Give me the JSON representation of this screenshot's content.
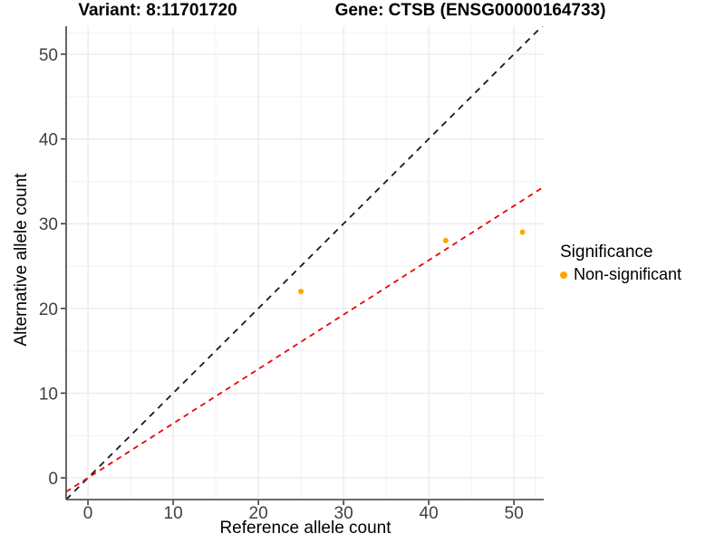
{
  "header": {
    "variant_title": "Variant: 8:11701720",
    "gene_title": "Gene: CTSB (ENSG00000164733)"
  },
  "chart_data": {
    "type": "scatter",
    "title": "Variant: 8:11701720 — Gene: CTSB (ENSG00000164733)",
    "xlabel": "Reference allele count",
    "ylabel": "Alternative allele count",
    "xlim": [
      -2.56,
      53.5
    ],
    "ylim": [
      -2.56,
      53.3
    ],
    "x_ticks": [
      0,
      10,
      20,
      30,
      40,
      50
    ],
    "y_ticks": [
      0,
      10,
      20,
      30,
      40,
      50
    ],
    "x_minor": [
      5,
      15,
      25,
      35,
      45,
      52.5
    ],
    "y_minor": [
      5,
      15,
      25,
      35,
      45,
      52.5
    ],
    "points": [
      {
        "x": 25,
        "y": 22
      },
      {
        "x": 42,
        "y": 28
      },
      {
        "x": 51,
        "y": 29
      }
    ],
    "point_series": "Non-significant",
    "point_color": "#FFA500",
    "point_radius": 3,
    "lines": [
      {
        "name": "identity-line",
        "slope": 1,
        "intercept": 0,
        "color": "#1A1A1A",
        "dash": "7,6",
        "width": 1.8
      },
      {
        "name": "fitted-ratio-line",
        "slope": 0.642,
        "intercept": 0,
        "color": "#EE0000",
        "dash": "6,5",
        "width": 1.8
      }
    ],
    "grid": {
      "major_color": "#E4E4E4",
      "minor_color": "#F2F2F2",
      "grid_on": true
    },
    "axis_line_color": "#555555",
    "tick_color": "#333333",
    "legend": {
      "title": "Significance",
      "position": "right",
      "items": [
        {
          "label": "Non-significant",
          "color": "#FFA500"
        }
      ]
    }
  }
}
